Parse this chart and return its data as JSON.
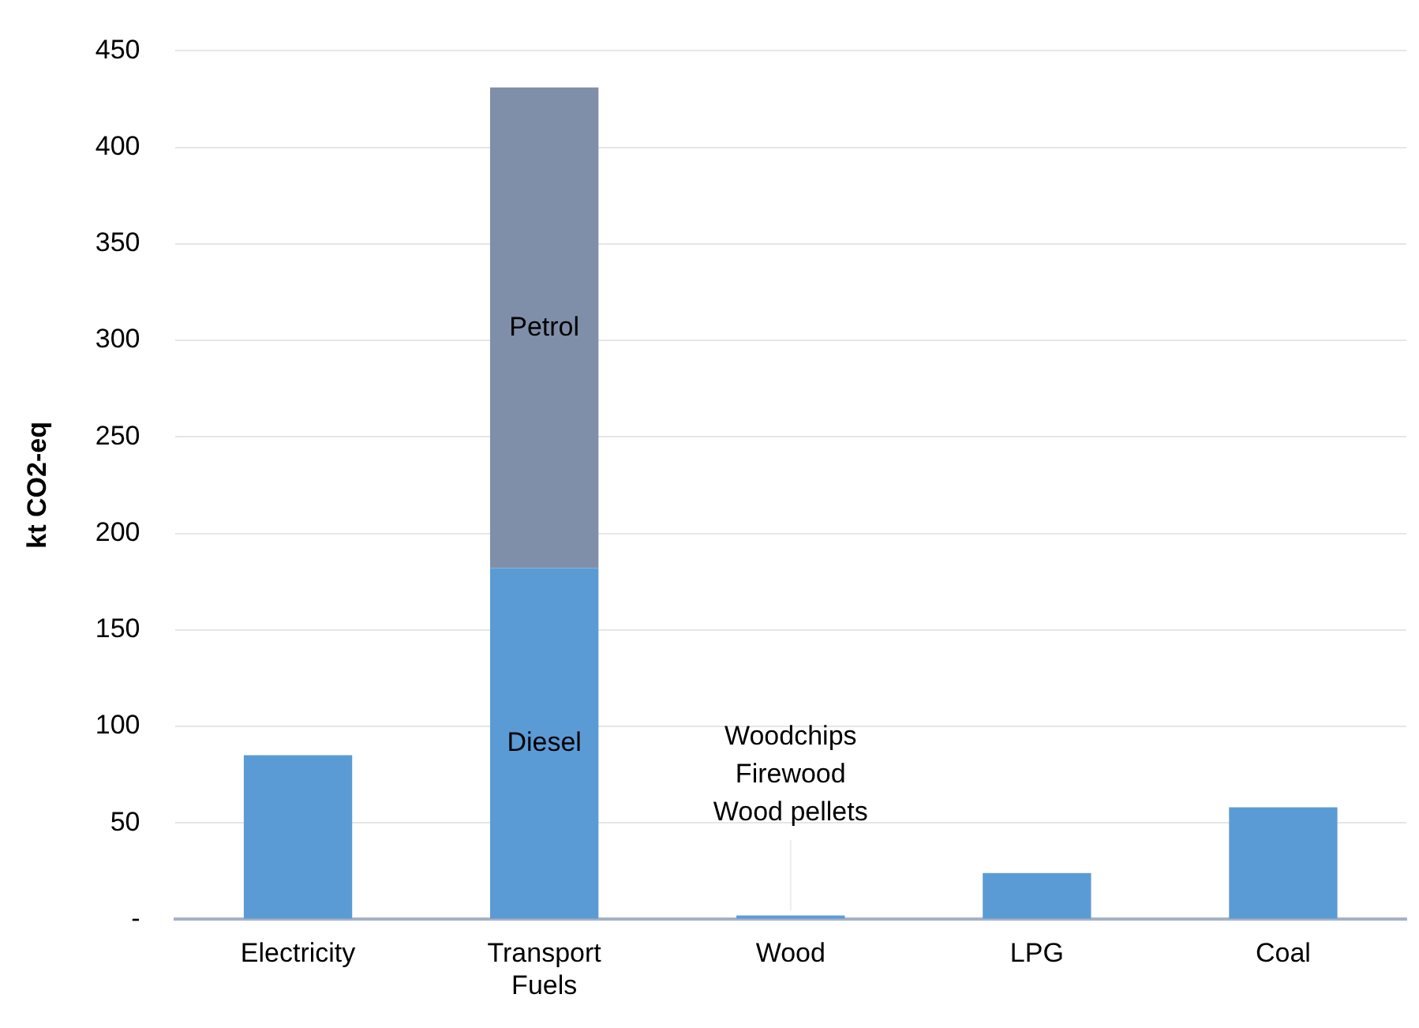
{
  "chart_data": {
    "type": "bar",
    "stacked": true,
    "ylabel": "kt CO2-eq",
    "categories": [
      "Electricity",
      "Transport Fuels",
      "Wood",
      "LPG",
      "Coal"
    ],
    "series": [
      {
        "color": "#5b9bd5",
        "values": [
          85,
          null,
          2,
          24,
          58
        ]
      },
      {
        "name": "Diesel",
        "color": "#5b9bd5",
        "values": [
          null,
          182,
          null,
          null,
          null
        ]
      },
      {
        "name": "Petrol",
        "color": "#7f8fa9",
        "values": [
          null,
          249,
          null,
          null,
          null
        ]
      }
    ],
    "ylim": [
      0,
      450
    ],
    "yticks": [
      {
        "value": 0,
        "label": "-"
      },
      50,
      100,
      150,
      200,
      250,
      300,
      350,
      400,
      450
    ],
    "grid": "y",
    "legend": false,
    "annotations": [
      {
        "text": "Woodchips\nFirewood\nWood pellets",
        "x": "Wood",
        "y": 2
      }
    ]
  }
}
